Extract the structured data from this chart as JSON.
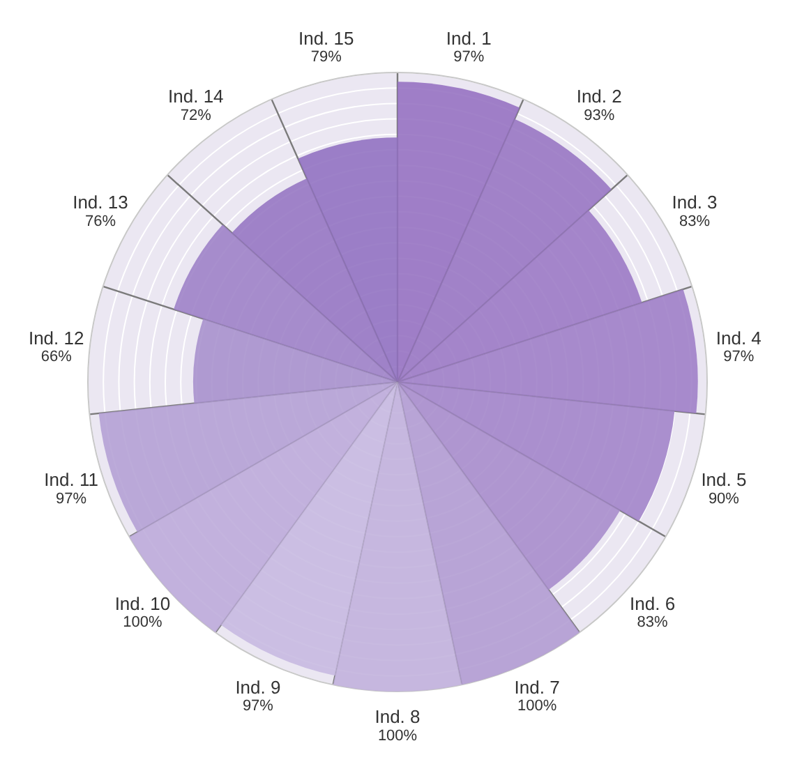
{
  "chart_data": {
    "type": "other",
    "categories": [
      "Ind. 1",
      "Ind. 2",
      "Ind. 3",
      "Ind. 4",
      "Ind. 5",
      "Ind. 6",
      "Ind. 7",
      "Ind. 8",
      "Ind. 9",
      "Ind. 10",
      "Ind. 11",
      "Ind. 12",
      "Ind. 13",
      "Ind. 14",
      "Ind. 15"
    ],
    "values": [
      97,
      93,
      83,
      97,
      90,
      83,
      100,
      100,
      97,
      100,
      97,
      66,
      76,
      72,
      79
    ],
    "value_labels": [
      "97%",
      "93%",
      "83%",
      "97%",
      "90%",
      "83%",
      "100%",
      "100%",
      "97%",
      "100%",
      "97%",
      "66%",
      "76%",
      "72%",
      "79%"
    ],
    "colors": [
      "#9470c0",
      "#9674c2",
      "#9a78c4",
      "#9d7dc6",
      "#a083c8",
      "#a68bcb",
      "#b09bd2",
      "#c0b0dc",
      "#c6b8e0",
      "#bcaad9",
      "#b39fd4",
      "#a690cc",
      "#9c80c6",
      "#9474c2",
      "#9070c0"
    ]
  }
}
